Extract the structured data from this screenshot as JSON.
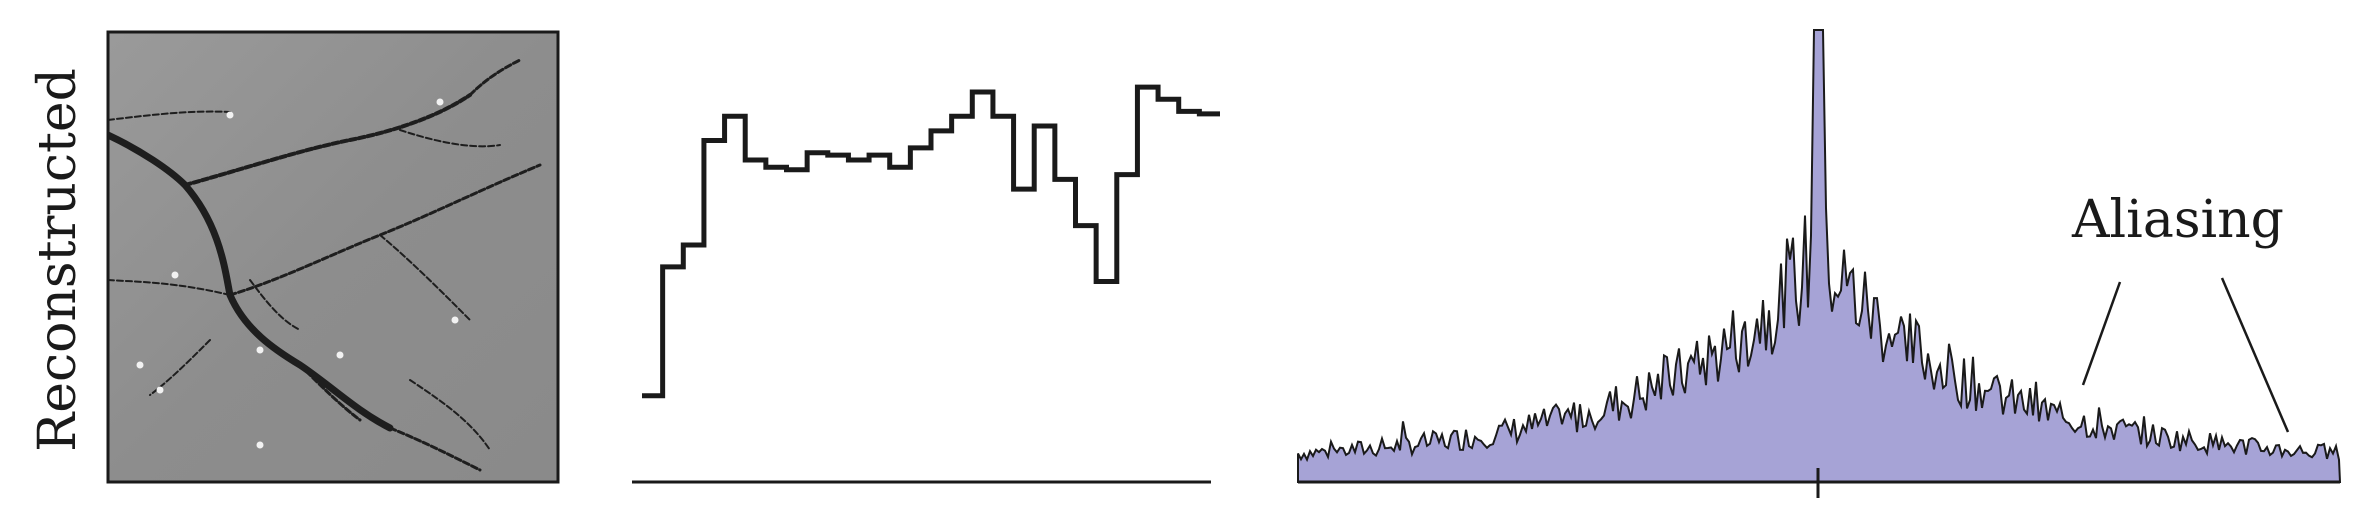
{
  "row_label": "Reconstructed",
  "annotation": "Aliasing",
  "colors": {
    "ink": "#1a1a1a",
    "spectrum_fill": "#a6a3d6",
    "image_background": "#8f8f8f",
    "image_vessels": "#1e1e1e"
  },
  "panels": {
    "image": {
      "content": "reconstructed-vessel-image"
    },
    "profile": {
      "type": "step",
      "values": [
        0.1,
        0.63,
        0.72,
        1.15,
        1.25,
        1.07,
        1.04,
        1.03,
        1.1,
        1.09,
        1.07,
        1.09,
        1.04,
        1.12,
        1.19,
        1.25,
        1.35,
        1.25,
        0.95,
        1.21,
        0.99,
        0.8,
        0.57,
        1.01,
        1.37,
        1.32,
        1.27,
        1.26
      ]
    },
    "spectrum": {
      "type": "area",
      "tick_mark": "center"
    }
  }
}
